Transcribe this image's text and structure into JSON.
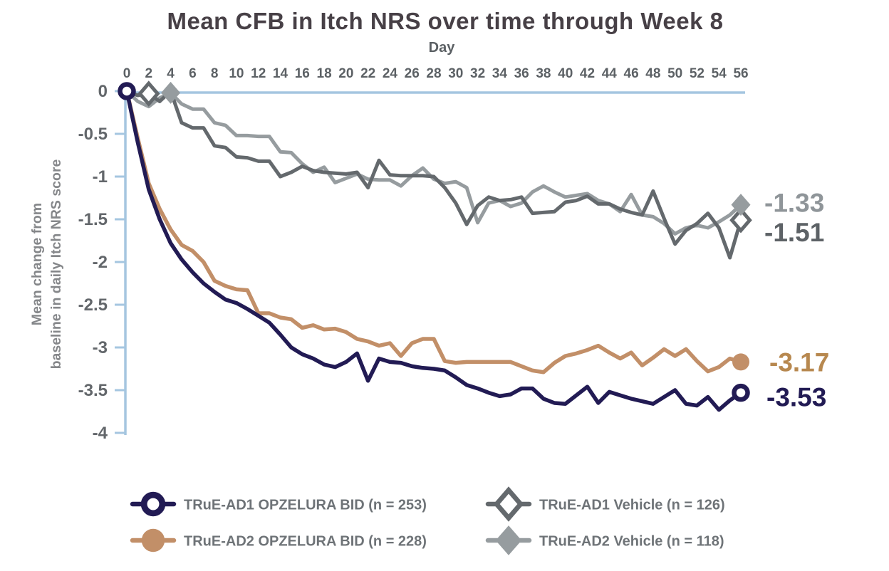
{
  "title": "Mean CFB in Itch NRS over time through Week 8",
  "x_axis": {
    "label": "Day",
    "ticks": [
      0,
      2,
      4,
      6,
      8,
      10,
      12,
      14,
      16,
      18,
      20,
      22,
      24,
      26,
      28,
      30,
      32,
      34,
      36,
      38,
      40,
      42,
      44,
      46,
      48,
      50,
      52,
      54,
      56
    ]
  },
  "y_axis": {
    "label_line1": "Mean change from",
    "label_line2": "baseline in daily Itch NRS score",
    "ticks": [
      0,
      -0.5,
      -1,
      -1.5,
      -2,
      -2.5,
      -3,
      -3.5,
      -4
    ]
  },
  "palette": {
    "axis_line": "#a5c6e0",
    "title_text": "#474046",
    "tick_text": "#5c6165",
    "legend_text": "#6e7377"
  },
  "chart_data": {
    "type": "line",
    "title": "Mean CFB in Itch NRS over time through Week 8",
    "xlabel": "Day",
    "ylabel": "Mean change from baseline in daily Itch NRS score",
    "xlim": [
      0,
      56
    ],
    "ylim": [
      -4,
      0
    ],
    "grid": false,
    "legend_position": "bottom",
    "x": [
      0,
      1,
      2,
      3,
      4,
      5,
      6,
      7,
      8,
      9,
      10,
      11,
      12,
      13,
      14,
      15,
      16,
      17,
      18,
      19,
      20,
      21,
      22,
      23,
      24,
      25,
      26,
      27,
      28,
      29,
      30,
      31,
      32,
      33,
      34,
      35,
      36,
      37,
      38,
      39,
      40,
      41,
      42,
      43,
      44,
      45,
      46,
      47,
      48,
      49,
      50,
      51,
      52,
      53,
      54,
      55,
      56
    ],
    "series": [
      {
        "id": "true-ad1-opzelura-bid",
        "name": "TRuE-AD1 OPZELURA BID (n = 253)",
        "color": "#221b54",
        "marker": "circle-open",
        "end_label": "-3.53",
        "end_label_color": "#221b54",
        "marker_points": [
          {
            "day": 0,
            "value": 0
          },
          {
            "day": 56,
            "value": -3.53
          }
        ],
        "values": [
          0,
          -0.6,
          -1.15,
          -1.5,
          -1.78,
          -1.97,
          -2.12,
          -2.25,
          -2.35,
          -2.44,
          -2.48,
          -2.55,
          -2.63,
          -2.71,
          -2.85,
          -3.0,
          -3.08,
          -3.13,
          -3.2,
          -3.23,
          -3.17,
          -3.07,
          -3.39,
          -3.13,
          -3.17,
          -3.18,
          -3.22,
          -3.24,
          -3.25,
          -3.27,
          -3.35,
          -3.44,
          -3.48,
          -3.53,
          -3.57,
          -3.55,
          -3.48,
          -3.48,
          -3.6,
          -3.65,
          -3.66,
          -3.56,
          -3.46,
          -3.65,
          -3.52,
          -3.56,
          -3.6,
          -3.63,
          -3.66,
          -3.58,
          -3.5,
          -3.66,
          -3.68,
          -3.58,
          -3.73,
          -3.62,
          -3.53
        ]
      },
      {
        "id": "true-ad2-opzelura-bid",
        "name": "TRuE-AD2 OPZELURA BID (n = 228)",
        "color": "#c28f68",
        "marker": "circle-filled",
        "end_label": "-3.17",
        "end_label_color": "#b7884f",
        "marker_points": [
          {
            "day": 56,
            "value": -3.17
          }
        ],
        "values": [
          0,
          -0.55,
          -1.08,
          -1.38,
          -1.62,
          -1.8,
          -1.87,
          -2.0,
          -2.22,
          -2.28,
          -2.32,
          -2.33,
          -2.6,
          -2.6,
          -2.65,
          -2.67,
          -2.77,
          -2.74,
          -2.79,
          -2.78,
          -2.82,
          -2.9,
          -2.93,
          -2.98,
          -2.95,
          -3.1,
          -2.95,
          -2.9,
          -2.9,
          -3.16,
          -3.18,
          -3.17,
          -3.17,
          -3.17,
          -3.17,
          -3.17,
          -3.22,
          -3.27,
          -3.29,
          -3.18,
          -3.1,
          -3.07,
          -3.03,
          -2.98,
          -3.06,
          -3.13,
          -3.06,
          -3.21,
          -3.12,
          -3.02,
          -3.1,
          -3.02,
          -3.16,
          -3.28,
          -3.23,
          -3.13,
          -3.17
        ]
      },
      {
        "id": "true-ad1-vehicle",
        "name": "TRuE-AD1 Vehicle (n = 126)",
        "color": "#64696d",
        "marker": "diamond-open",
        "end_label": "-1.51",
        "end_label_color": "#5d6266",
        "marker_points": [
          {
            "day": 2,
            "value": -0.03
          },
          {
            "day": 56,
            "value": -1.51
          }
        ],
        "values": [
          0,
          -0.05,
          -0.03,
          -0.12,
          0,
          -0.37,
          -0.43,
          -0.43,
          -0.64,
          -0.66,
          -0.77,
          -0.78,
          -0.82,
          -0.82,
          -1.0,
          -0.95,
          -0.88,
          -0.93,
          -0.95,
          -0.96,
          -0.97,
          -0.95,
          -1.13,
          -0.81,
          -0.98,
          -0.99,
          -0.99,
          -0.99,
          -1.0,
          -1.13,
          -1.31,
          -1.56,
          -1.34,
          -1.24,
          -1.28,
          -1.27,
          -1.24,
          -1.43,
          -1.42,
          -1.41,
          -1.3,
          -1.28,
          -1.23,
          -1.32,
          -1.32,
          -1.38,
          -1.42,
          -1.45,
          -1.17,
          -1.49,
          -1.79,
          -1.63,
          -1.55,
          -1.43,
          -1.6,
          -1.95,
          -1.51
        ]
      },
      {
        "id": "true-ad2-vehicle",
        "name": "TRuE-AD2 Vehicle (n = 118)",
        "color": "#969c9f",
        "marker": "diamond-filled",
        "end_label": "-1.33",
        "end_label_color": "#8f9599",
        "marker_points": [
          {
            "day": 4,
            "value": -0.02
          },
          {
            "day": 56,
            "value": -1.33
          }
        ],
        "values": [
          0,
          -0.12,
          -0.18,
          -0.08,
          -0.02,
          -0.15,
          -0.21,
          -0.21,
          -0.37,
          -0.4,
          -0.52,
          -0.52,
          -0.53,
          -0.53,
          -0.71,
          -0.72,
          -0.85,
          -0.95,
          -0.89,
          -1.07,
          -1.02,
          -0.97,
          -1.03,
          -1.04,
          -1.04,
          -1.11,
          -0.99,
          -0.9,
          -1.03,
          -1.08,
          -1.06,
          -1.13,
          -1.54,
          -1.31,
          -1.28,
          -1.35,
          -1.31,
          -1.18,
          -1.11,
          -1.18,
          -1.24,
          -1.22,
          -1.2,
          -1.28,
          -1.32,
          -1.41,
          -1.21,
          -1.45,
          -1.47,
          -1.55,
          -1.67,
          -1.6,
          -1.57,
          -1.6,
          -1.53,
          -1.45,
          -1.33
        ]
      }
    ]
  },
  "legend": {
    "items": [
      {
        "label": "TRuE-AD1 OPZELURA BID (n = 253)",
        "series": 0
      },
      {
        "label": "TRuE-AD2 OPZELURA BID (n = 228)",
        "series": 1
      },
      {
        "label": "TRuE-AD1 Vehicle (n = 126)",
        "series": 2
      },
      {
        "label": "TRuE-AD2 Vehicle (n = 118)",
        "series": 3
      }
    ]
  }
}
